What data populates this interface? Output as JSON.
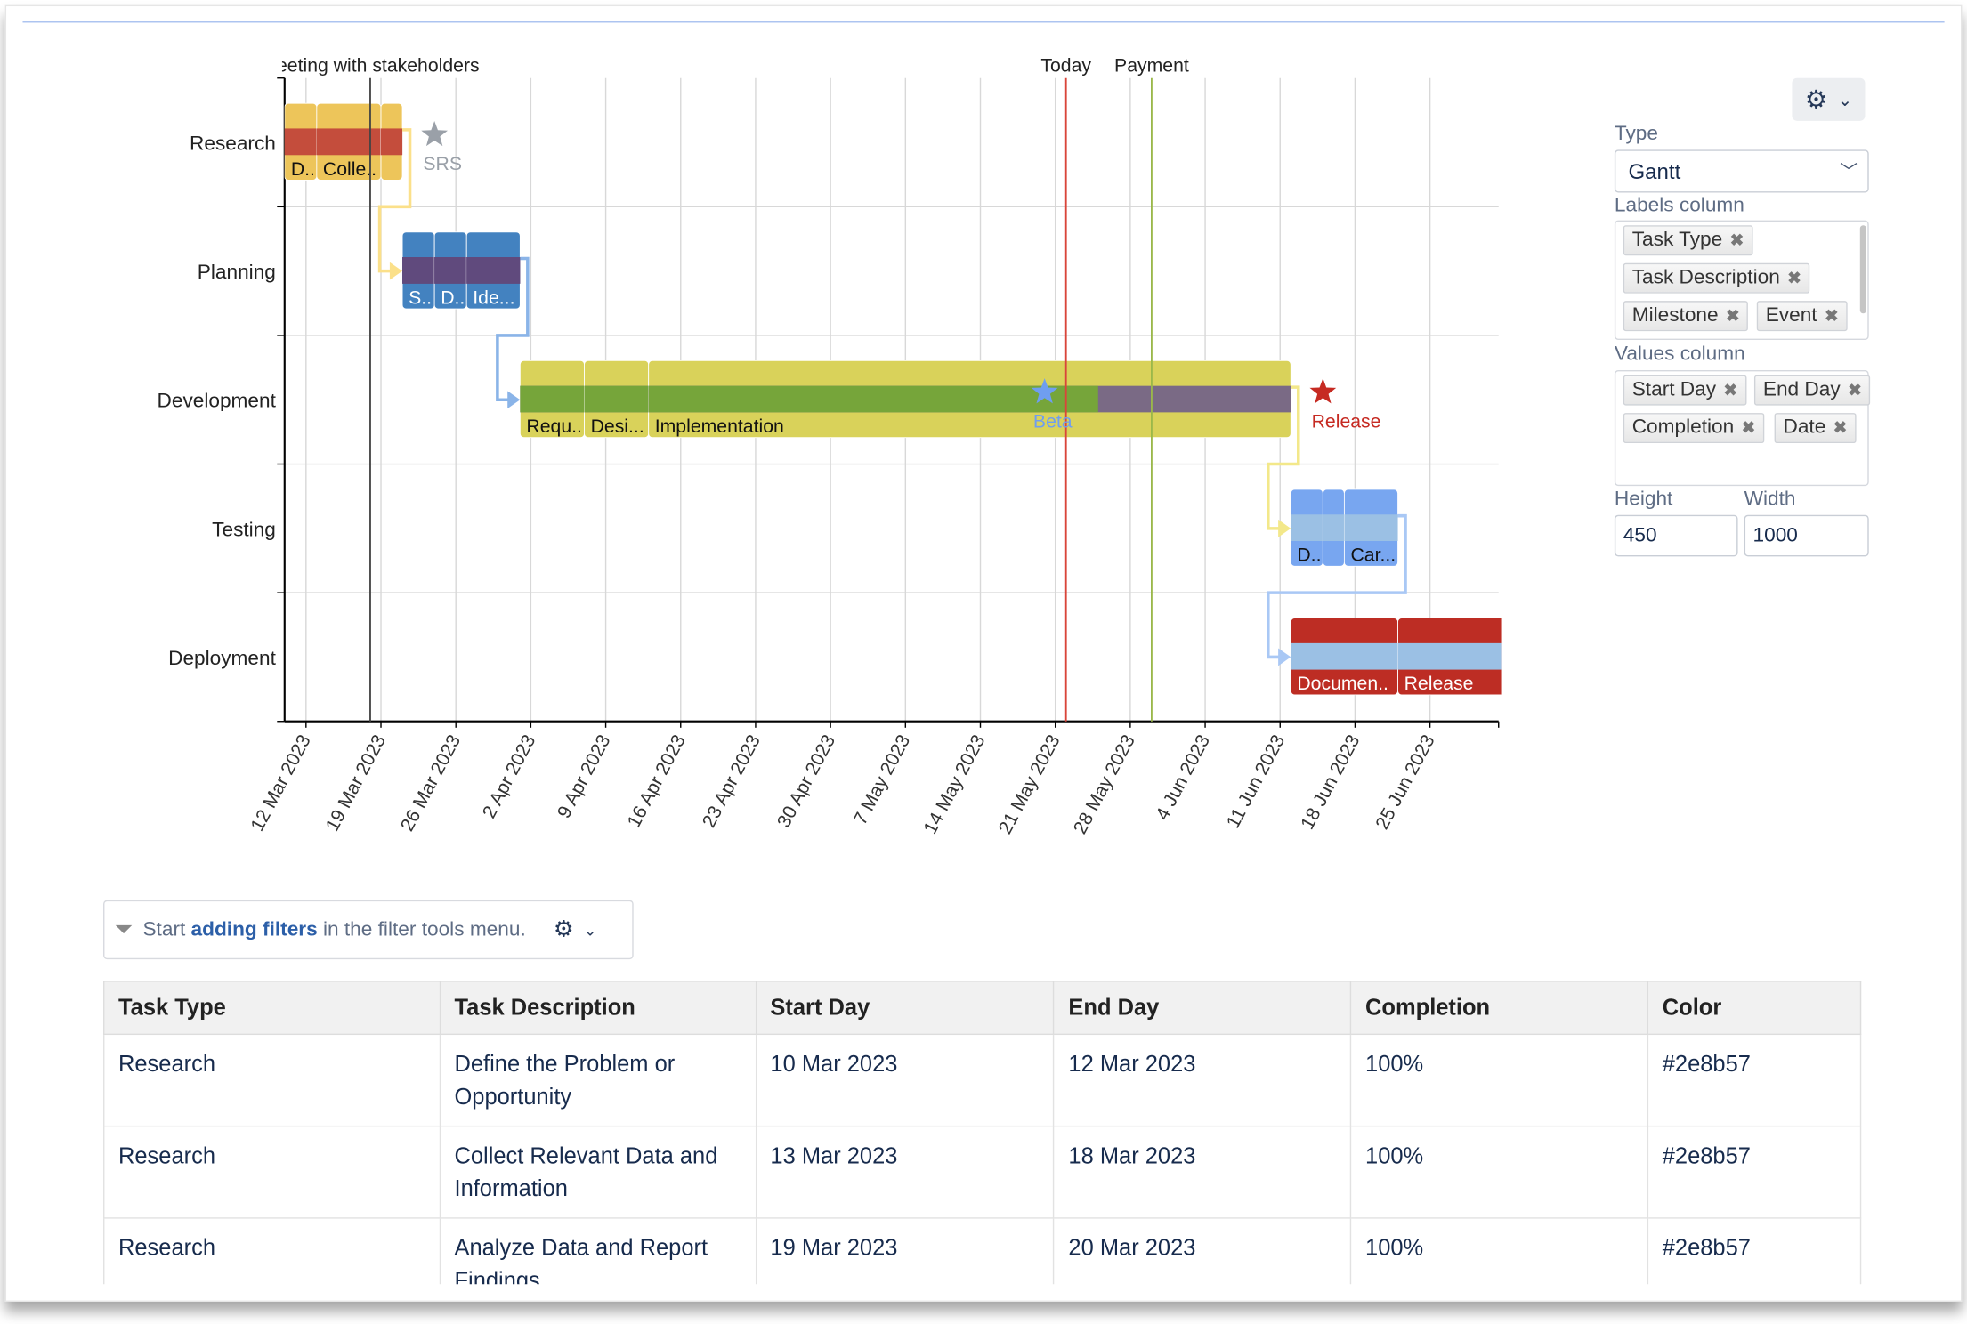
{
  "chart_data": {
    "type": "gantt",
    "x_start": "10 Mar 2023",
    "x_end": "1 Jul 2023",
    "x_ticks": [
      "12 Mar 2023",
      "19 Mar 2023",
      "26 Mar 2023",
      "2 Apr 2023",
      "9 Apr 2023",
      "16 Apr 2023",
      "23 Apr 2023",
      "30 Apr 2023",
      "7 May 2023",
      "14 May 2023",
      "21 May 2023",
      "28 May 2023",
      "4 Jun 2023",
      "11 Jun 2023",
      "18 Jun 2023",
      "25 Jun 2023"
    ],
    "grid": true,
    "rows": [
      {
        "label": "Research",
        "top_color": "#edc55a",
        "done_color": "#c44d3c",
        "rest_color": "#c44d3c",
        "text_color": "#111",
        "tasks": [
          {
            "label": "D..",
            "start": "2023-03-10",
            "end": "2023-03-13",
            "completion": 100
          },
          {
            "label": "Colle..",
            "start": "2023-03-13",
            "end": "2023-03-19",
            "completion": 100
          },
          {
            "label": "",
            "start": "2023-03-19",
            "end": "2023-03-21",
            "completion": 100
          }
        ]
      },
      {
        "label": "Planning",
        "top_color": "#4382c0",
        "done_color": "#604a7d",
        "rest_color": "#604a7d",
        "text_color": "#fff",
        "tasks": [
          {
            "label": "S..",
            "start": "2023-03-21",
            "end": "2023-03-24",
            "completion": 100
          },
          {
            "label": "D..",
            "start": "2023-03-24",
            "end": "2023-03-27",
            "completion": 100
          },
          {
            "label": "Ide...",
            "start": "2023-03-27",
            "end": "2023-04-01",
            "completion": 100
          }
        ]
      },
      {
        "label": "Development",
        "top_color": "#d9d25a",
        "done_color": "#76a53a",
        "rest_color": "#7a6a85",
        "text_color": "#111",
        "tasks": [
          {
            "label": "Requ..",
            "start": "2023-04-01",
            "end": "2023-04-07",
            "completion": 100
          },
          {
            "label": "Desi...",
            "start": "2023-04-07",
            "end": "2023-04-13",
            "completion": 100
          },
          {
            "label": "Implementation",
            "start": "2023-04-13",
            "end": "2023-06-12",
            "completion": 70
          }
        ]
      },
      {
        "label": "Testing",
        "top_color": "#78a6f0",
        "done_color": "#9bc0e4",
        "rest_color": "#9bc0e4",
        "text_color": "#111",
        "tasks": [
          {
            "label": "D..",
            "start": "2023-06-12",
            "end": "2023-06-15",
            "completion": 0
          },
          {
            "label": "",
            "start": "2023-06-15",
            "end": "2023-06-17",
            "completion": 0
          },
          {
            "label": "Car...",
            "start": "2023-06-17",
            "end": "2023-06-22",
            "completion": 0
          }
        ]
      },
      {
        "label": "Deployment",
        "top_color": "#bd2d24",
        "done_color": "#9bc0e4",
        "rest_color": "#9bc0e4",
        "text_color": "#fff",
        "tasks": [
          {
            "label": "Documen..",
            "start": "2023-06-12",
            "end": "2023-06-22",
            "completion": 0
          },
          {
            "label": "Release",
            "start": "2023-06-22",
            "end": "2023-07-02",
            "completion": 0
          }
        ]
      }
    ],
    "connectors": [
      {
        "from": 0,
        "to": 1,
        "color": "#fbe08a"
      },
      {
        "from": 1,
        "to": 2,
        "color": "#8ab4e8"
      },
      {
        "from": 2,
        "to": 3,
        "color": "#f3e88a"
      },
      {
        "from": 3,
        "to": 4,
        "color": "#a9c8f5"
      }
    ],
    "events": [
      {
        "label": "Meeting with stakeholders",
        "date": "2023-03-18",
        "color": "#444444"
      },
      {
        "label": "Today",
        "date": "2023-05-22",
        "color": "#d9453a"
      },
      {
        "label": "Payment",
        "date": "2023-05-30",
        "color": "#9ab84a"
      }
    ],
    "milestones": [
      {
        "label": "SRS",
        "date": "2023-03-24",
        "row": 0,
        "color": "#9aa0a8"
      },
      {
        "label": "Beta",
        "date": "2023-05-20",
        "row": 2,
        "color": "#6f9ef0"
      },
      {
        "label": "Release",
        "date": "2023-06-15",
        "row": 2,
        "color": "#c62a22"
      }
    ]
  },
  "settings": {
    "type_label": "Type",
    "type_value": "Gantt",
    "labels_column_label": "Labels column",
    "labels_column": [
      "Task Type",
      "Task Description",
      "Milestone",
      "Event"
    ],
    "values_column_label": "Values column",
    "values_column": [
      "Start Day",
      "End Day",
      "Completion",
      "Date"
    ],
    "height_label": "Height",
    "height_value": "450",
    "width_label": "Width",
    "width_value": "1000"
  },
  "filter": {
    "pre": "Start ",
    "link": "adding filters",
    "post": " in the filter tools menu."
  },
  "table": {
    "headers": [
      "Task Type",
      "Task Description",
      "Start Day",
      "End Day",
      "Completion",
      "Color"
    ],
    "rows": [
      [
        "Research",
        "Define the Problem or Opportunity",
        "10 Mar 2023",
        "12 Mar 2023",
        "100%",
        "#2e8b57"
      ],
      [
        "Research",
        "Collect Relevant Data and Information",
        "13 Mar 2023",
        "18 Mar 2023",
        "100%",
        "#2e8b57"
      ],
      [
        "Research",
        "Analyze Data and Report Findings",
        "19 Mar 2023",
        "20 Mar 2023",
        "100%",
        "#2e8b57"
      ]
    ]
  }
}
